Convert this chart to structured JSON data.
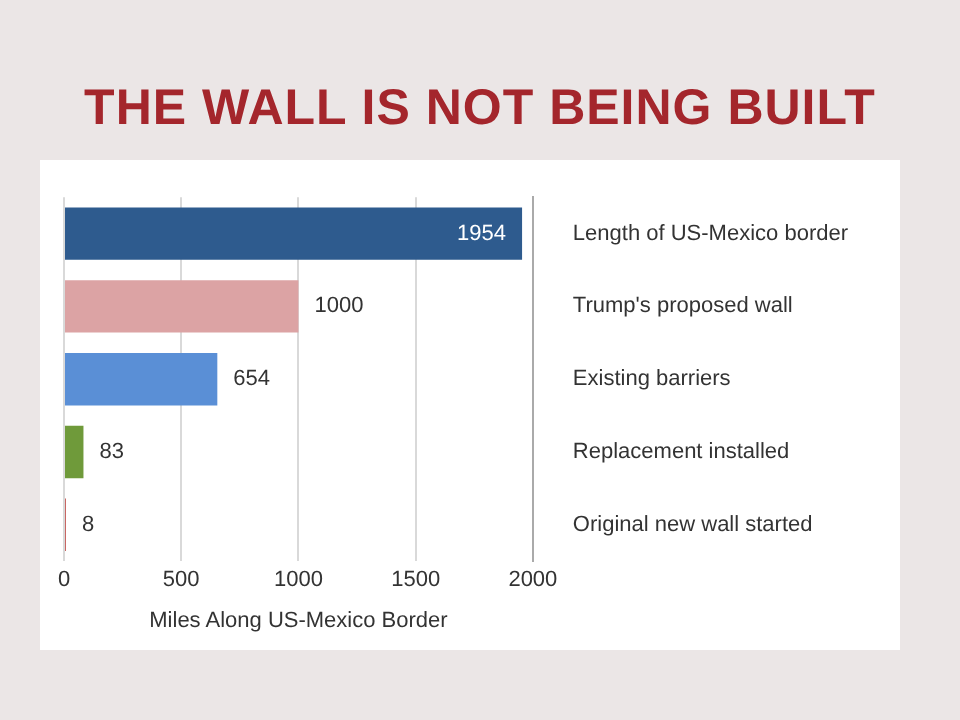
{
  "chart_data": {
    "type": "bar",
    "orientation": "horizontal",
    "title": "THE WALL IS NOT BEING BUILT",
    "xlabel": "Miles Along US-Mexico Border",
    "categories": [
      "Length of US-Mexico border",
      "Trump's proposed wall",
      "Existing barriers",
      "Replacement installed",
      "Original new wall started"
    ],
    "values": [
      1954,
      1000,
      654,
      83,
      8
    ],
    "colors": [
      "#2e5b8e",
      "#dca3a4",
      "#5a8fd6",
      "#6f9a3a",
      "#c0504d"
    ],
    "xlim": [
      0,
      2000
    ],
    "xticks": [
      0,
      500,
      1000,
      1500,
      2000
    ],
    "grid": "x",
    "data_labels": true
  }
}
